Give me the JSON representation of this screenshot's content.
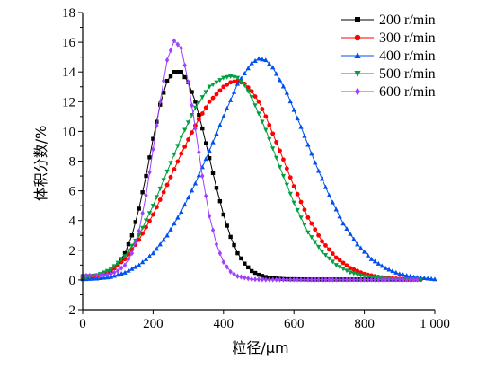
{
  "chart_data": {
    "type": "line",
    "xlabel": "粒径/μm",
    "ylabel": "体积分数/%",
    "xlim": [
      0,
      1000
    ],
    "ylim": [
      -2,
      18
    ],
    "x_ticks": [
      {
        "value": 0,
        "label": "0"
      },
      {
        "value": 200,
        "label": "200"
      },
      {
        "value": 400,
        "label": "400"
      },
      {
        "value": 600,
        "label": "600"
      },
      {
        "value": 800,
        "label": "800"
      },
      {
        "value": 1000,
        "label": "1 000"
      }
    ],
    "y_ticks": [
      {
        "value": -2,
        "label": "-2"
      },
      {
        "value": 0,
        "label": "0"
      },
      {
        "value": 2,
        "label": "2"
      },
      {
        "value": 4,
        "label": "4"
      },
      {
        "value": 6,
        "label": "6"
      },
      {
        "value": 8,
        "label": "8"
      },
      {
        "value": 10,
        "label": "10"
      },
      {
        "value": 12,
        "label": "12"
      },
      {
        "value": 14,
        "label": "14"
      },
      {
        "value": 16,
        "label": "16"
      },
      {
        "value": 18,
        "label": "18"
      }
    ],
    "grid": false,
    "legend_position": "top-right",
    "series": [
      {
        "name": "200 r/min",
        "color": "#000000",
        "marker": "square",
        "x": [
          0,
          20,
          40,
          60,
          80,
          100,
          120,
          140,
          160,
          180,
          200,
          220,
          240,
          260,
          280,
          300,
          320,
          340,
          360,
          380,
          400,
          420,
          440,
          460,
          480,
          500,
          520,
          540,
          560,
          580,
          600,
          650,
          700,
          750,
          800,
          850,
          900,
          950
        ],
        "y": [
          0.25,
          0.25,
          0.3,
          0.4,
          0.6,
          1.0,
          1.8,
          3.0,
          4.8,
          7.0,
          9.5,
          11.8,
          13.4,
          14.0,
          14.0,
          13.3,
          12.0,
          10.2,
          8.2,
          6.2,
          4.4,
          2.9,
          1.8,
          1.1,
          0.6,
          0.35,
          0.2,
          0.12,
          0.08,
          0.05,
          0.05,
          0.03,
          0.03,
          0.03,
          0.03,
          0.03,
          0.03,
          0.03
        ]
      },
      {
        "name": "300 r/min",
        "color": "#ff0000",
        "marker": "circle",
        "x": [
          0,
          40,
          80,
          120,
          160,
          200,
          240,
          280,
          320,
          360,
          400,
          420,
          440,
          460,
          480,
          500,
          520,
          560,
          600,
          640,
          680,
          720,
          760,
          800,
          840,
          880,
          920,
          960
        ],
        "y": [
          0.1,
          0.25,
          0.6,
          1.4,
          2.7,
          4.4,
          6.4,
          8.5,
          10.4,
          12.0,
          13.0,
          13.3,
          13.4,
          13.2,
          12.7,
          12.0,
          11.0,
          8.7,
          6.3,
          4.2,
          2.6,
          1.5,
          0.8,
          0.4,
          0.2,
          0.1,
          0.05,
          0.02
        ]
      },
      {
        "name": "400 r/min",
        "color": "#0050f0",
        "marker": "triangle-up",
        "x": [
          0,
          40,
          80,
          120,
          160,
          200,
          240,
          280,
          320,
          360,
          400,
          440,
          480,
          500,
          520,
          540,
          580,
          620,
          660,
          700,
          740,
          780,
          820,
          860,
          900,
          940,
          980,
          1000
        ],
        "y": [
          0.05,
          0.1,
          0.2,
          0.5,
          1.0,
          1.8,
          3.0,
          4.6,
          6.5,
          8.7,
          11.0,
          13.2,
          14.6,
          14.9,
          14.8,
          14.3,
          12.6,
          10.3,
          7.9,
          5.7,
          3.8,
          2.4,
          1.4,
          0.8,
          0.4,
          0.2,
          0.1,
          0.05
        ]
      },
      {
        "name": "500 r/min",
        "color": "#00a040",
        "marker": "triangle-down",
        "x": [
          0,
          40,
          80,
          120,
          160,
          200,
          240,
          280,
          320,
          360,
          400,
          420,
          440,
          460,
          480,
          520,
          560,
          600,
          640,
          680,
          720,
          760,
          800,
          840,
          880,
          920,
          960
        ],
        "y": [
          0.1,
          0.3,
          0.7,
          1.6,
          3.0,
          5.0,
          7.3,
          9.6,
          11.6,
          13.0,
          13.6,
          13.7,
          13.6,
          13.1,
          12.3,
          10.1,
          7.6,
          5.2,
          3.2,
          1.9,
          1.0,
          0.5,
          0.25,
          0.1,
          0.05,
          0.03,
          0.02
        ]
      },
      {
        "name": "600 r/min",
        "color": "#a040ff",
        "marker": "diamond",
        "x": [
          0,
          40,
          80,
          100,
          120,
          140,
          160,
          180,
          200,
          220,
          240,
          260,
          280,
          300,
          320,
          340,
          360,
          380,
          400,
          420,
          440,
          480,
          520,
          600,
          700,
          800,
          900,
          950
        ],
        "y": [
          0.3,
          0.3,
          0.4,
          0.6,
          1.0,
          1.8,
          3.3,
          5.7,
          8.8,
          12.0,
          14.8,
          16.1,
          15.6,
          13.3,
          10.2,
          7.0,
          4.3,
          2.4,
          1.2,
          0.55,
          0.25,
          0.05,
          0.02,
          0.02,
          0.02,
          0.02,
          0.02,
          0.02
        ]
      }
    ]
  }
}
